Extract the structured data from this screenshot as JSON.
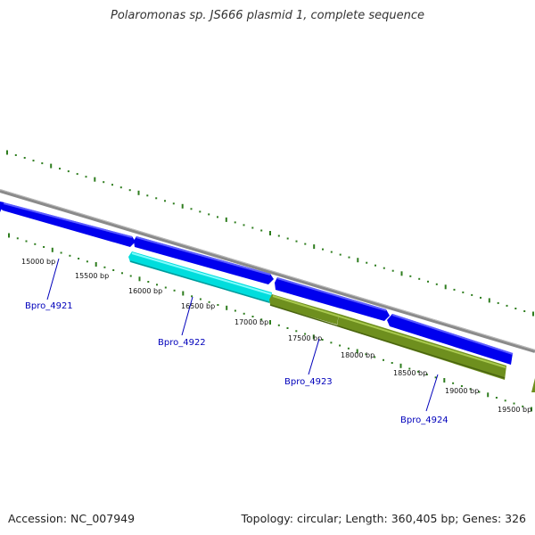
{
  "title": "Polaromonas sp. JS666 plasmid 1, complete sequence",
  "footer": {
    "accession": "Accession: NC_007949",
    "summary": "Topology: circular; Length: 360,405 bp; Genes: 326"
  },
  "scale_labels": [
    "15000 bp",
    "15500 bp",
    "16000 bp",
    "16500 bp",
    "17000 bp",
    "17500 bp",
    "18000 bp",
    "18500 bp",
    "19000 bp",
    "19500 bp"
  ],
  "genes": [
    {
      "name": "Bpro_4921",
      "strand": "forward",
      "color": "#0000ee"
    },
    {
      "name": "Bpro_4922",
      "strand": "reverse",
      "color": "#00dddd"
    },
    {
      "name": "Bpro_4923",
      "strand": "reverse",
      "color": "#6e8f1e"
    },
    {
      "name": "Bpro_4924",
      "strand": "reverse",
      "color": "#6e8f1e"
    }
  ],
  "colors": {
    "backbone": "#888888",
    "forward_gene": "#0000ee",
    "ticks": "#2e7d1e"
  }
}
